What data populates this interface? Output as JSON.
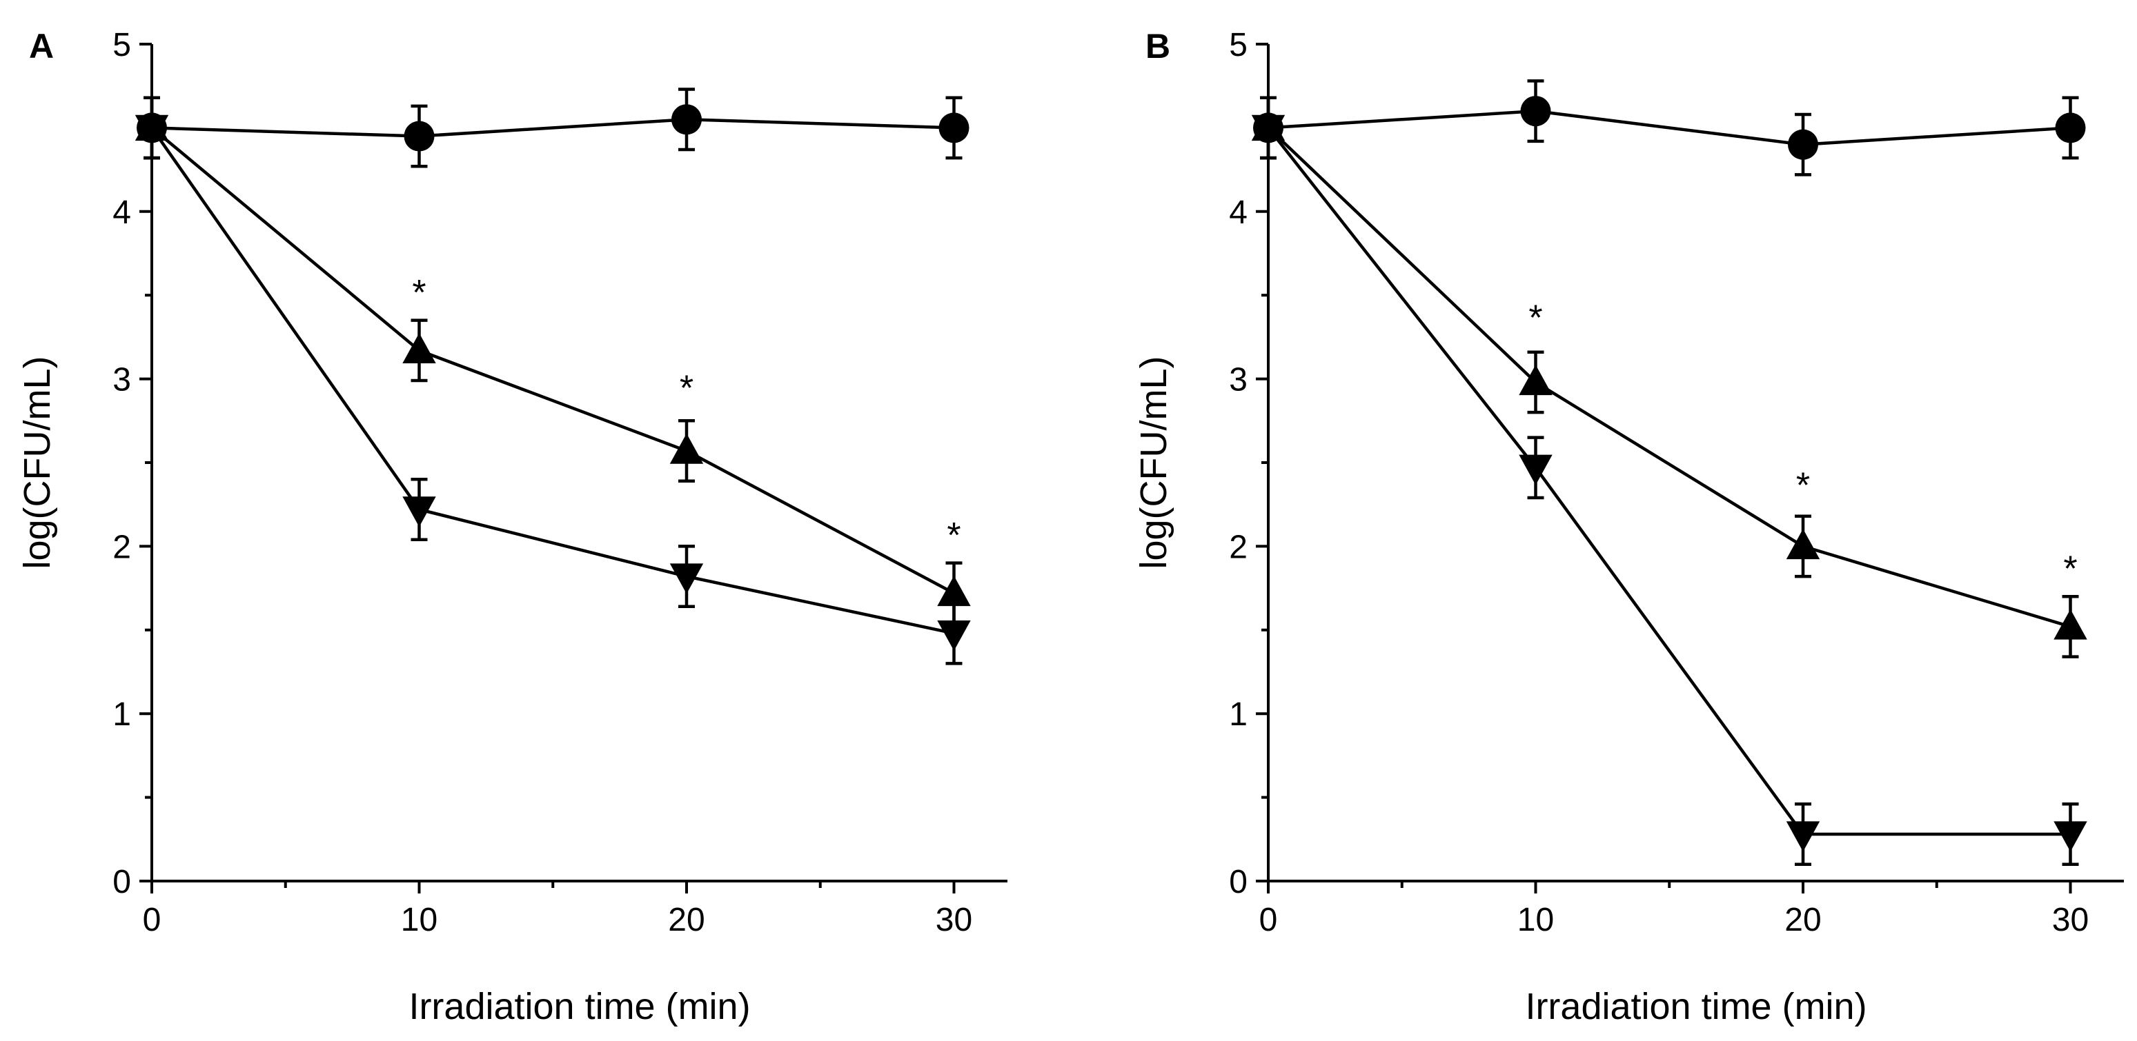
{
  "chart_data": [
    {
      "panel": "A",
      "type": "line",
      "xlabel": "Irradiation time (min)",
      "ylabel": "log(CFU/mL)",
      "xlim": [
        0,
        32
      ],
      "ylim": [
        0,
        5
      ],
      "xticks": [
        0,
        10,
        20,
        30
      ],
      "yticks": [
        0,
        1,
        2,
        3,
        4,
        5
      ],
      "x": [
        0,
        10,
        20,
        30
      ],
      "series": [
        {
          "marker": "circle",
          "values": [
            4.5,
            4.45,
            4.55,
            4.5
          ],
          "errors": [
            0.18,
            0.18,
            0.18,
            0.18
          ]
        },
        {
          "marker": "triangle-up",
          "values": [
            4.5,
            3.17,
            2.57,
            1.72
          ],
          "errors": [
            0.18,
            0.18,
            0.18,
            0.18
          ]
        },
        {
          "marker": "triangle-down",
          "values": [
            4.5,
            2.22,
            1.82,
            1.48
          ],
          "errors": [
            0.18,
            0.18,
            0.18,
            0.18
          ]
        }
      ],
      "annotations": [
        {
          "text": "*",
          "x": 10,
          "y": 3.55
        },
        {
          "text": "*",
          "x": 20,
          "y": 2.98
        },
        {
          "text": "*",
          "x": 30,
          "y": 2.1
        }
      ]
    },
    {
      "panel": "B",
      "type": "line",
      "xlabel": "Irradiation time (min)",
      "ylabel": "log(CFU/mL)",
      "xlim": [
        0,
        32
      ],
      "ylim": [
        0,
        5
      ],
      "xticks": [
        0,
        10,
        20,
        30
      ],
      "yticks": [
        0,
        1,
        2,
        3,
        4,
        5
      ],
      "x": [
        0,
        10,
        20,
        30
      ],
      "series": [
        {
          "marker": "circle",
          "values": [
            4.5,
            4.6,
            4.4,
            4.5
          ],
          "errors": [
            0.18,
            0.18,
            0.18,
            0.18
          ]
        },
        {
          "marker": "triangle-up",
          "values": [
            4.5,
            2.98,
            2.0,
            1.52
          ],
          "errors": [
            0.18,
            0.18,
            0.18,
            0.18
          ]
        },
        {
          "marker": "triangle-down",
          "values": [
            4.5,
            2.47,
            0.28,
            0.28
          ],
          "errors": [
            0.18,
            0.18,
            0.18,
            0.18
          ]
        }
      ],
      "annotations": [
        {
          "text": "*",
          "x": 10,
          "y": 3.4
        },
        {
          "text": "*",
          "x": 20,
          "y": 2.4
        },
        {
          "text": "*",
          "x": 30,
          "y": 1.9
        }
      ]
    }
  ]
}
